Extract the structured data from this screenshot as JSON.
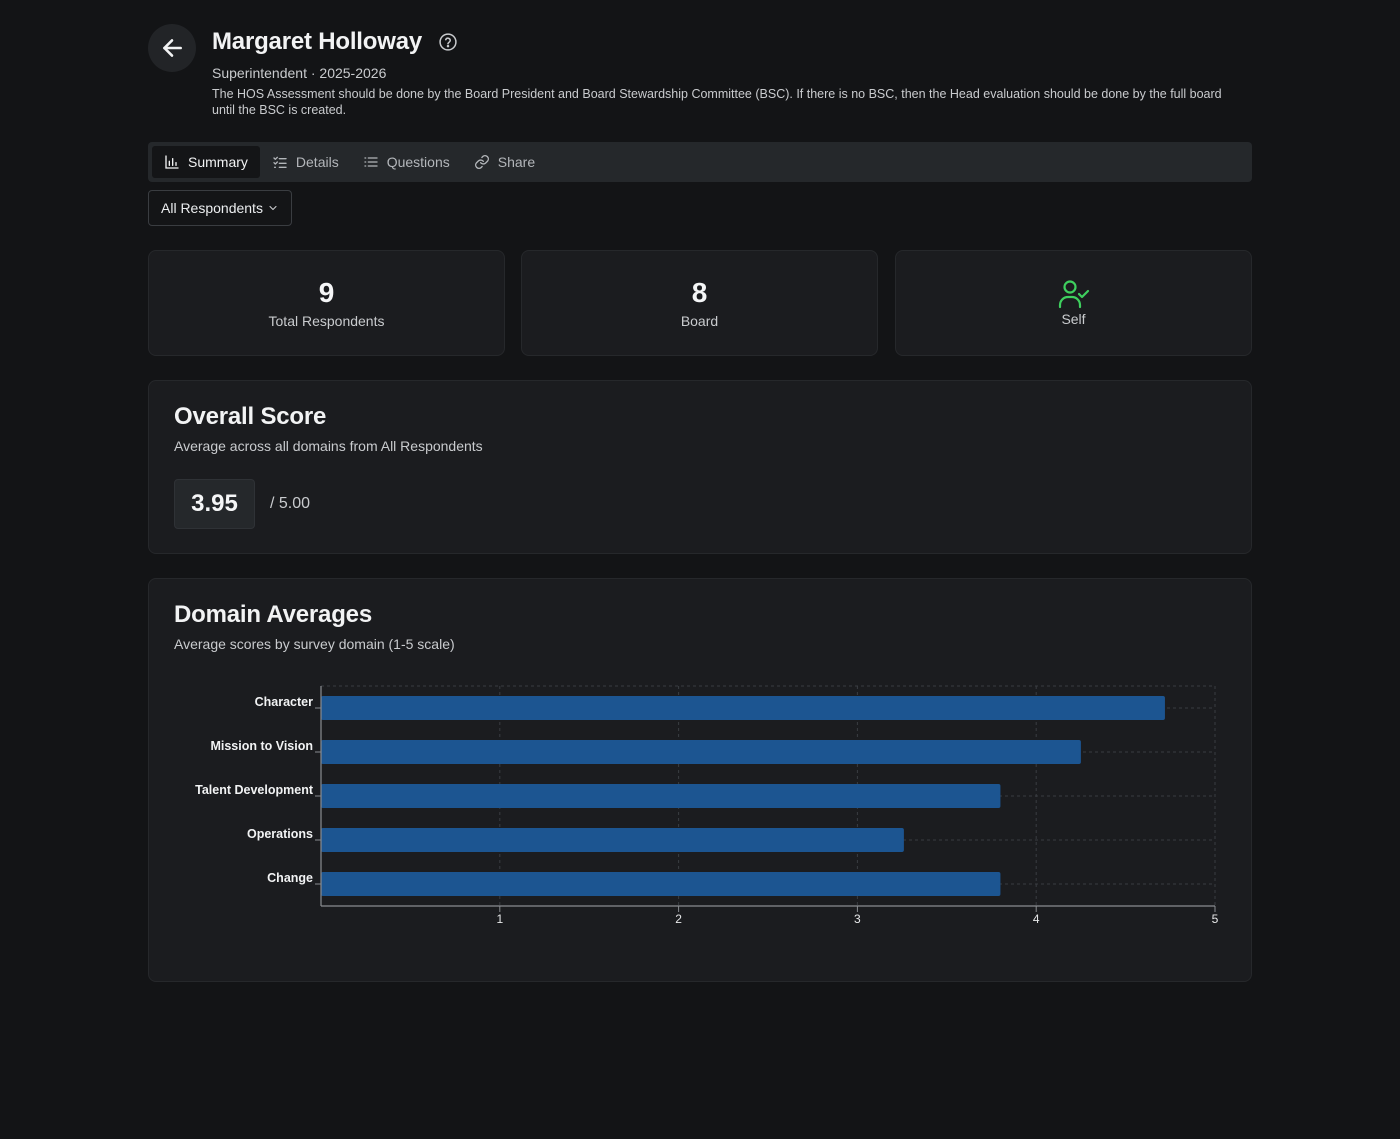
{
  "header": {
    "name": "Margaret Holloway",
    "subtitle": "Superintendent · 2025-2026",
    "description": "The HOS Assessment should be done by the Board President and Board Stewardship Committee (BSC). If there is no BSC, then the Head evaluation should be done by the full board until the BSC is created."
  },
  "tabs": [
    {
      "label": "Summary",
      "icon": "bar-chart-icon",
      "active": true
    },
    {
      "label": "Details",
      "icon": "checklist-icon",
      "active": false
    },
    {
      "label": "Questions",
      "icon": "list-icon",
      "active": false
    },
    {
      "label": "Share",
      "icon": "link-icon",
      "active": false
    }
  ],
  "filter": {
    "selected": "All Respondents"
  },
  "stats": {
    "total": {
      "value": "9",
      "label": "Total Respondents"
    },
    "board": {
      "value": "8",
      "label": "Board"
    },
    "self": {
      "label": "Self",
      "icon": "user-check-icon",
      "icon_color": "#3ecf5e"
    }
  },
  "overall": {
    "title": "Overall Score",
    "subtitle": "Average across all domains from All Respondents",
    "score": "3.95",
    "max": "/ 5.00"
  },
  "domains": {
    "title": "Domain Averages",
    "subtitle": "Average scores by survey domain (1-5 scale)"
  },
  "colors": {
    "bar": "#1c5591",
    "background": "#131416",
    "card": "#1b1c1f",
    "accent_green": "#3ecf5e"
  },
  "chart_data": {
    "type": "bar",
    "orientation": "horizontal",
    "categories": [
      "Character",
      "Mission to Vision",
      "Talent Development",
      "Operations",
      "Change"
    ],
    "values": [
      4.72,
      4.25,
      3.8,
      3.26,
      3.8
    ],
    "xlim": [
      0,
      5
    ],
    "xticks": [
      "1",
      "2",
      "3",
      "4",
      "5"
    ],
    "grid": true
  }
}
